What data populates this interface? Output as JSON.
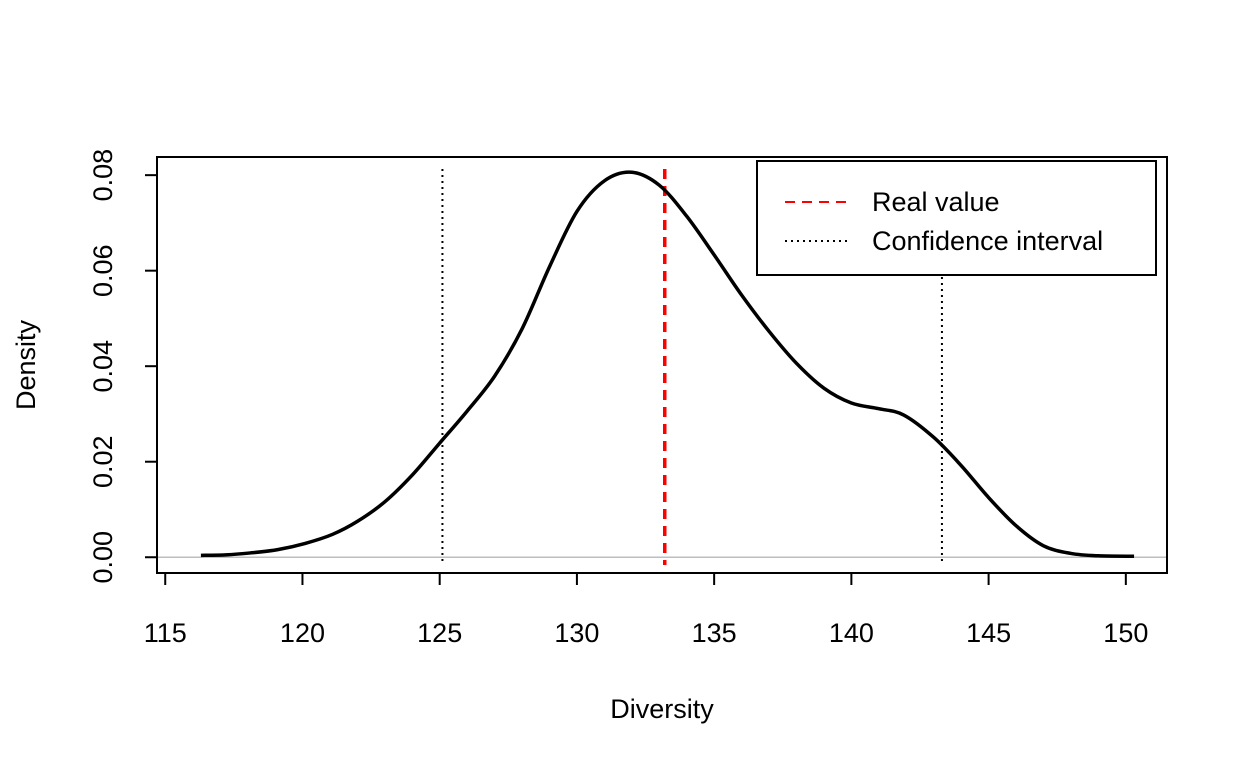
{
  "chart_data": {
    "type": "line",
    "title": "",
    "xlabel": "Diversity",
    "ylabel": "Density",
    "xlim": [
      114.7,
      151.5
    ],
    "ylim": [
      -0.0033,
      0.0838
    ],
    "x_ticks": [
      115,
      120,
      125,
      130,
      135,
      140,
      145,
      150
    ],
    "x_tick_labels": [
      "115",
      "120",
      "125",
      "130",
      "135",
      "140",
      "145",
      "150"
    ],
    "y_ticks": [
      0.0,
      0.02,
      0.04,
      0.06,
      0.08
    ],
    "y_tick_labels": [
      "0.00",
      "0.02",
      "0.04",
      "0.06",
      "0.08"
    ],
    "grid": false,
    "baseline": {
      "y": 0,
      "color": "#bebebe"
    },
    "series": [
      {
        "style": "solid",
        "color": "#000000",
        "x": [
          116.3,
          117.2,
          118.1,
          119.1,
          120.1,
          121.1,
          122.0,
          123.0,
          124.0,
          125.0,
          126.0,
          127.0,
          128.0,
          129.0,
          130.0,
          131.0,
          132.0,
          133.0,
          134.0,
          135.0,
          136.0,
          137.0,
          138.0,
          139.0,
          140.0,
          141.0,
          141.9,
          143.0,
          144.0,
          145.0,
          146.0,
          147.0,
          148.0,
          149.0,
          150.3
        ],
        "y": [
          0.0004,
          0.0005,
          0.0009,
          0.0016,
          0.0029,
          0.0048,
          0.0075,
          0.0116,
          0.0172,
          0.0239,
          0.0306,
          0.0379,
          0.0478,
          0.0608,
          0.0724,
          0.0788,
          0.0806,
          0.0779,
          0.0714,
          0.0633,
          0.0549,
          0.0473,
          0.0406,
          0.0354,
          0.0323,
          0.0311,
          0.0298,
          0.0251,
          0.0192,
          0.0125,
          0.0066,
          0.0024,
          0.0008,
          0.0003,
          0.0002
        ]
      }
    ],
    "vlines": [
      {
        "name": "Real value",
        "x": 133.2,
        "style": "dashed",
        "color": "#ff0000"
      },
      {
        "name": "Confidence interval",
        "x": 125.1,
        "style": "dotted",
        "color": "#000000"
      },
      {
        "name": "Confidence interval",
        "x": 143.3,
        "style": "dotted",
        "color": "#000000"
      }
    ],
    "legend": {
      "position": "top-right",
      "entries": [
        {
          "label": "Real value",
          "style": "dashed",
          "color": "#ff0000"
        },
        {
          "label": "Confidence interval",
          "style": "dotted",
          "color": "#000000"
        }
      ]
    }
  }
}
